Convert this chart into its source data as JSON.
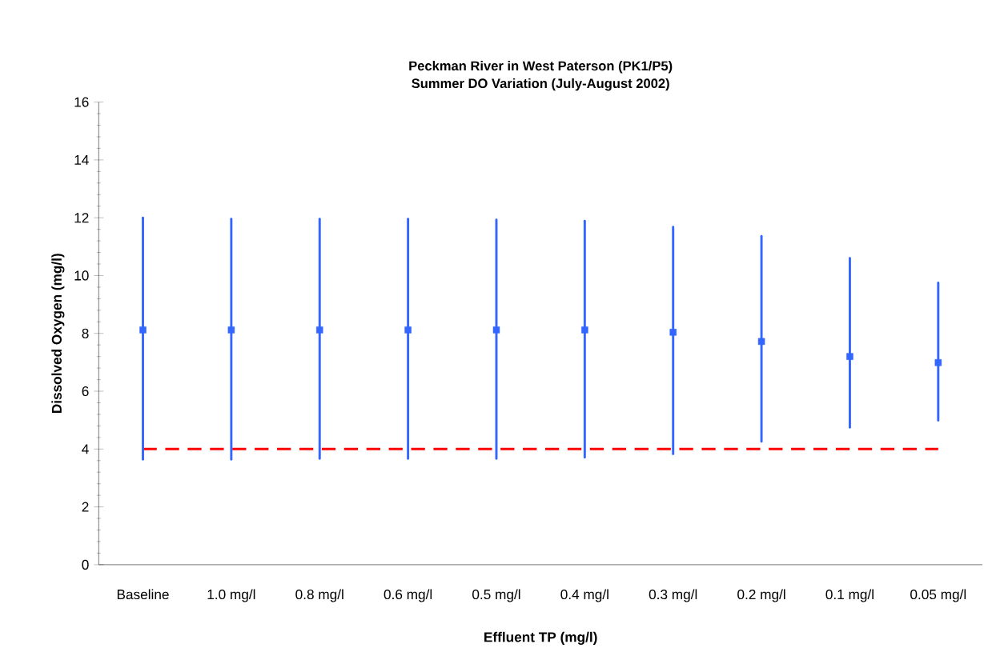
{
  "chart_data": {
    "type": "scatter",
    "title": "Peckman River in West Paterson (PK1/P5)",
    "subtitle": "Summer DO Variation (July-August 2002)",
    "xlabel": "Effluent TP (mg/l)",
    "ylabel": "Dissolved Oxygen (mg/l)",
    "categories": [
      "Baseline",
      "1.0 mg/l",
      "0.8 mg/l",
      "0.6 mg/l",
      "0.5 mg/l",
      "0.4 mg/l",
      "0.3 mg/l",
      "0.2 mg/l",
      "0.1 mg/l",
      "0.05 mg/l"
    ],
    "color": "#3366ff",
    "marker": "square",
    "values": [
      8.12,
      8.12,
      8.12,
      8.12,
      8.12,
      8.12,
      8.04,
      7.72,
      7.2,
      6.99
    ],
    "errors": [
      [
        3.64,
        12.0
      ],
      [
        3.64,
        11.96
      ],
      [
        3.67,
        11.96
      ],
      [
        3.67,
        11.96
      ],
      [
        3.67,
        11.93
      ],
      [
        3.71,
        11.89
      ],
      [
        3.83,
        11.68
      ],
      [
        4.26,
        11.36
      ],
      [
        4.75,
        10.6
      ],
      [
        4.99,
        9.75
      ]
    ],
    "ylim": [
      0,
      16
    ],
    "yticks": [
      0,
      2,
      4,
      6,
      8,
      10,
      12,
      14,
      16
    ],
    "ref_lines": [
      {
        "axis": "y",
        "value": 4,
        "color": "#ff0000",
        "line_style": "dashed"
      }
    ]
  }
}
